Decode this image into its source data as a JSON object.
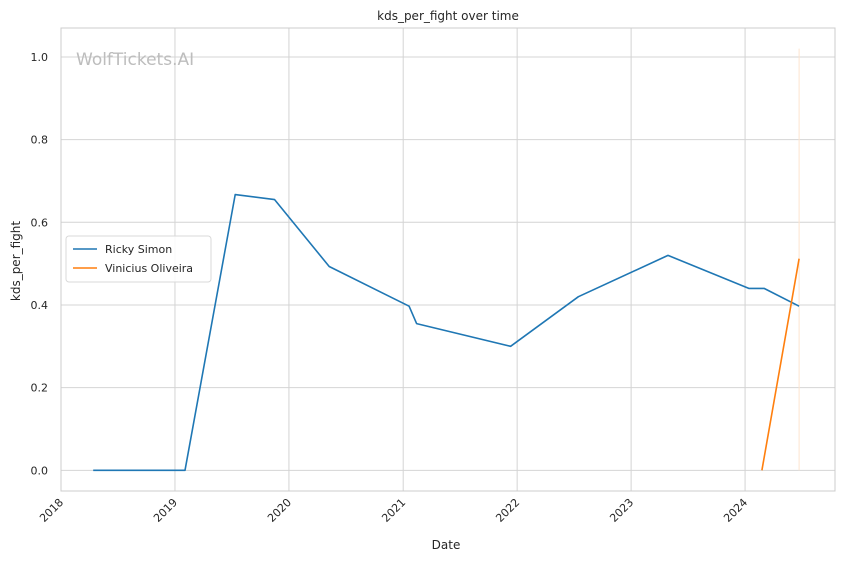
{
  "chart_data": {
    "type": "line",
    "title": "kds_per_fight over time",
    "xlabel": "Date",
    "ylabel": "kds_per_fight",
    "watermark": "WolfTickets.AI",
    "xlim": [
      "2018-01-01",
      "2024-10-15"
    ],
    "ylim": [
      -0.05,
      1.07
    ],
    "x_ticks": [
      "2018",
      "2019",
      "2020",
      "2021",
      "2022",
      "2023",
      "2024"
    ],
    "y_ticks": [
      "0.0",
      "0.2",
      "0.4",
      "0.6",
      "0.8",
      "1.0"
    ],
    "y_tick_values": [
      0.0,
      0.2,
      0.4,
      0.6,
      0.8,
      1.0
    ],
    "grid": true,
    "legend_position": "center-left",
    "series": [
      {
        "name": "Ricky Simon",
        "color": "#1f77b4",
        "points": [
          {
            "x": "2018-04-14",
            "y": 0.0
          },
          {
            "x": "2019-02-02",
            "y": 0.0
          },
          {
            "x": "2019-07-13",
            "y": 0.667
          },
          {
            "x": "2019-11-16",
            "y": 0.655
          },
          {
            "x": "2020-05-09",
            "y": 0.493
          },
          {
            "x": "2021-01-20",
            "y": 0.397
          },
          {
            "x": "2021-02-13",
            "y": 0.355
          },
          {
            "x": "2021-12-11",
            "y": 0.3
          },
          {
            "x": "2022-07-16",
            "y": 0.42
          },
          {
            "x": "2023-04-29",
            "y": 0.52
          },
          {
            "x": "2024-01-13",
            "y": 0.44
          },
          {
            "x": "2024-03-02",
            "y": 0.44
          },
          {
            "x": "2024-06-22",
            "y": 0.397
          }
        ]
      },
      {
        "name": "Vinicius Oliveira",
        "color": "#ff7f0e",
        "points": [
          {
            "x": "2024-02-24",
            "y": 0.0
          },
          {
            "x": "2024-06-22",
            "y": 0.512
          }
        ]
      }
    ],
    "vertical_marker": {
      "x": "2024-06-22",
      "y_range": [
        0.0,
        1.02
      ],
      "color": "#fde4cf"
    }
  }
}
